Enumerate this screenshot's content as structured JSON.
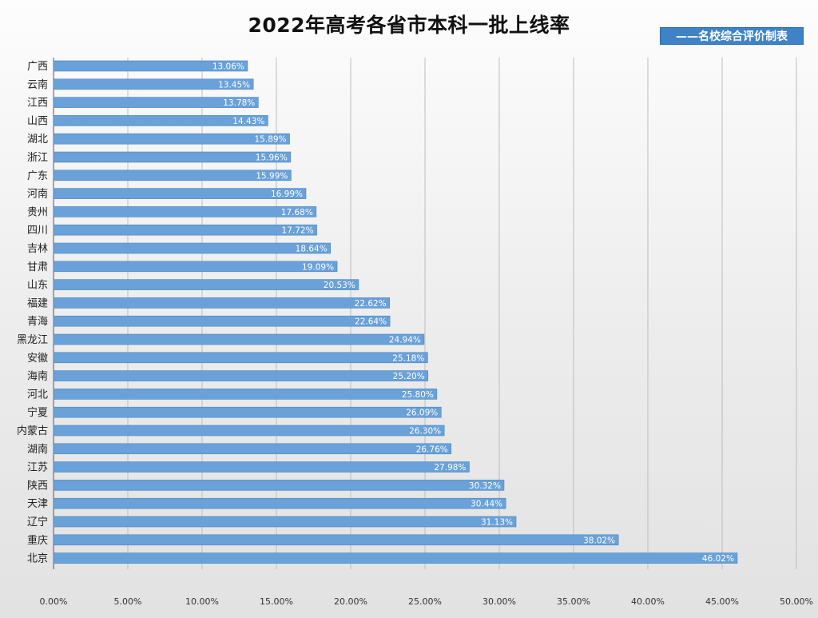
{
  "chart_data": {
    "type": "bar",
    "orientation": "horizontal",
    "title": "2022年高考各省市本科一批上线率",
    "legend": "——名校综合评价制表",
    "legend_position": "top-right",
    "categories": [
      "广西",
      "云南",
      "江西",
      "山西",
      "湖北",
      "浙江",
      "广东",
      "河南",
      "贵州",
      "四川",
      "吉林",
      "甘肃",
      "山东",
      "福建",
      "青海",
      "黑龙江",
      "安徽",
      "海南",
      "河北",
      "宁夏",
      "内蒙古",
      "湖南",
      "江苏",
      "陕西",
      "天津",
      "辽宁",
      "重庆",
      "北京"
    ],
    "values": [
      13.06,
      13.45,
      13.78,
      14.43,
      15.89,
      15.96,
      15.99,
      16.99,
      17.68,
      17.72,
      18.64,
      19.09,
      20.53,
      22.62,
      22.64,
      24.94,
      25.18,
      25.2,
      25.8,
      26.09,
      26.3,
      26.76,
      27.98,
      30.32,
      30.44,
      31.13,
      38.02,
      46.02
    ],
    "data_labels": [
      "13.06%",
      "13.45%",
      "13.78%",
      "14.43%",
      "15.89%",
      "15.96%",
      "15.99%",
      "16.99%",
      "17.68%",
      "17.72%",
      "18.64%",
      "19.09%",
      "20.53%",
      "22.62%",
      "22.64%",
      "24.94%",
      "25.18%",
      "25.20%",
      "25.80%",
      "26.09%",
      "26.30%",
      "26.76%",
      "27.98%",
      "30.32%",
      "30.44%",
      "31.13%",
      "38.02%",
      "46.02%"
    ],
    "x_ticks": [
      "0.00%",
      "5.00%",
      "10.00%",
      "15.00%",
      "20.00%",
      "25.00%",
      "30.00%",
      "35.00%",
      "40.00%",
      "45.00%",
      "50.00%"
    ],
    "xlim": [
      0,
      50
    ],
    "grid": true,
    "bar_color": "#6aa1d8",
    "bar_border_color": "#4a86c5",
    "legend_color": "#3f83c6"
  }
}
